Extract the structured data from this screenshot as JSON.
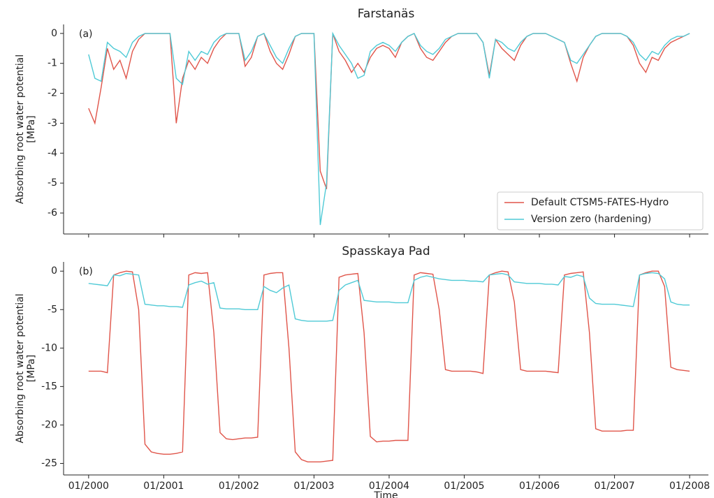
{
  "chart_data": [
    {
      "type": "line",
      "title": "Farstanäs",
      "annotation": "(a)",
      "ylabel": [
        "Absorbing root water potential",
        "[MPa]"
      ],
      "x": [
        "01/2000",
        "02/2000",
        "03/2000",
        "04/2000",
        "05/2000",
        "06/2000",
        "07/2000",
        "08/2000",
        "09/2000",
        "10/2000",
        "11/2000",
        "12/2000",
        "01/2001",
        "02/2001",
        "03/2001",
        "04/2001",
        "05/2001",
        "06/2001",
        "07/2001",
        "08/2001",
        "09/2001",
        "10/2001",
        "11/2001",
        "12/2001",
        "01/2002",
        "02/2002",
        "03/2002",
        "04/2002",
        "05/2002",
        "06/2002",
        "07/2002",
        "08/2002",
        "09/2002",
        "10/2002",
        "11/2002",
        "12/2002",
        "01/2003",
        "02/2003",
        "03/2003",
        "04/2003",
        "05/2003",
        "06/2003",
        "07/2003",
        "08/2003",
        "09/2003",
        "10/2003",
        "11/2003",
        "12/2003",
        "01/2004",
        "02/2004",
        "03/2004",
        "04/2004",
        "05/2004",
        "06/2004",
        "07/2004",
        "08/2004",
        "09/2004",
        "10/2004",
        "11/2004",
        "12/2004",
        "01/2005",
        "02/2005",
        "03/2005",
        "04/2005",
        "05/2005",
        "06/2005",
        "07/2005",
        "08/2005",
        "09/2005",
        "10/2005",
        "11/2005",
        "12/2005",
        "01/2006",
        "02/2006",
        "03/2006",
        "04/2006",
        "05/2006",
        "06/2006",
        "07/2006",
        "08/2006",
        "09/2006",
        "10/2006",
        "11/2006",
        "12/2006",
        "01/2007",
        "02/2007",
        "03/2007",
        "04/2007",
        "05/2007",
        "06/2007",
        "07/2007",
        "08/2007",
        "09/2007",
        "10/2007",
        "11/2007",
        "12/2007",
        "01/2008"
      ],
      "series": [
        {
          "name": "Default CTSM5-FATES-Hydro",
          "color": "#e0554a",
          "values": [
            -2.5,
            -3.0,
            -1.8,
            -0.5,
            -1.2,
            -0.9,
            -1.5,
            -0.6,
            -0.2,
            0,
            0,
            0,
            0,
            0,
            -3.0,
            -1.5,
            -0.9,
            -1.2,
            -0.8,
            -1.0,
            -0.5,
            -0.2,
            0,
            0,
            0,
            -1.1,
            -0.8,
            -0.1,
            0,
            -0.6,
            -1.0,
            -1.2,
            -0.7,
            -0.1,
            0,
            0,
            0,
            -4.6,
            -5.2,
            0,
            -0.6,
            -0.9,
            -1.3,
            -1.0,
            -1.3,
            -0.8,
            -0.5,
            -0.4,
            -0.5,
            -0.8,
            -0.3,
            -0.1,
            0,
            -0.5,
            -0.8,
            -0.9,
            -0.6,
            -0.3,
            -0.1,
            0,
            0,
            0,
            0,
            -0.3,
            -1.4,
            -0.2,
            -0.5,
            -0.7,
            -0.9,
            -0.4,
            -0.1,
            0,
            0,
            0,
            -0.1,
            -0.2,
            -0.3,
            -1.0,
            -1.6,
            -0.8,
            -0.4,
            -0.1,
            0,
            0,
            0,
            0,
            -0.1,
            -0.4,
            -1.0,
            -1.3,
            -0.8,
            -0.9,
            -0.5,
            -0.3,
            -0.2,
            -0.1,
            0
          ]
        },
        {
          "name": "Version zero (hardening)",
          "color": "#4fcad6",
          "values": [
            -0.7,
            -1.5,
            -1.6,
            -0.3,
            -0.5,
            -0.6,
            -0.8,
            -0.3,
            -0.1,
            0,
            0,
            0,
            0,
            0,
            -1.5,
            -1.7,
            -0.6,
            -0.9,
            -0.6,
            -0.7,
            -0.3,
            -0.1,
            0,
            0,
            0,
            -0.9,
            -0.6,
            -0.1,
            0,
            -0.4,
            -0.8,
            -1.0,
            -0.5,
            -0.1,
            0,
            0,
            0,
            -6.4,
            -5.0,
            0,
            -0.4,
            -0.7,
            -1.0,
            -1.5,
            -1.4,
            -0.6,
            -0.4,
            -0.3,
            -0.4,
            -0.6,
            -0.3,
            -0.1,
            0,
            -0.4,
            -0.6,
            -0.7,
            -0.5,
            -0.2,
            -0.1,
            0,
            0,
            0,
            0,
            -0.3,
            -1.5,
            -0.2,
            -0.3,
            -0.5,
            -0.6,
            -0.3,
            -0.1,
            0,
            0,
            0,
            -0.1,
            -0.2,
            -0.3,
            -0.9,
            -1.0,
            -0.7,
            -0.4,
            -0.1,
            0,
            0,
            0,
            0,
            -0.1,
            -0.3,
            -0.7,
            -0.9,
            -0.6,
            -0.7,
            -0.4,
            -0.2,
            -0.1,
            -0.1,
            0
          ]
        }
      ],
      "xlim": [
        "09/1999",
        "04/2008"
      ],
      "xticks": [
        "01/2000",
        "01/2001",
        "01/2002",
        "01/2003",
        "01/2004",
        "01/2005",
        "01/2006",
        "01/2007",
        "01/2008"
      ],
      "xticklabels": false,
      "ylim": [
        -6.7,
        0.3
      ],
      "yticks": [
        -6,
        -5,
        -4,
        -3,
        -2,
        -1,
        0
      ],
      "legend": "lower right"
    },
    {
      "type": "line",
      "title": "Spasskaya Pad",
      "annotation": "(b)",
      "ylabel": [
        "Absorbing root water potential",
        "[MPa]"
      ],
      "xlabel": "Time",
      "x": [
        "01/2000",
        "02/2000",
        "03/2000",
        "04/2000",
        "05/2000",
        "06/2000",
        "07/2000",
        "08/2000",
        "09/2000",
        "10/2000",
        "11/2000",
        "12/2000",
        "01/2001",
        "02/2001",
        "03/2001",
        "04/2001",
        "05/2001",
        "06/2001",
        "07/2001",
        "08/2001",
        "09/2001",
        "10/2001",
        "11/2001",
        "12/2001",
        "01/2002",
        "02/2002",
        "03/2002",
        "04/2002",
        "05/2002",
        "06/2002",
        "07/2002",
        "08/2002",
        "09/2002",
        "10/2002",
        "11/2002",
        "12/2002",
        "01/2003",
        "02/2003",
        "03/2003",
        "04/2003",
        "05/2003",
        "06/2003",
        "07/2003",
        "08/2003",
        "09/2003",
        "10/2003",
        "11/2003",
        "12/2003",
        "01/2004",
        "02/2004",
        "03/2004",
        "04/2004",
        "05/2004",
        "06/2004",
        "07/2004",
        "08/2004",
        "09/2004",
        "10/2004",
        "11/2004",
        "12/2004",
        "01/2005",
        "02/2005",
        "03/2005",
        "04/2005",
        "05/2005",
        "06/2005",
        "07/2005",
        "08/2005",
        "09/2005",
        "10/2005",
        "11/2005",
        "12/2005",
        "01/2006",
        "02/2006",
        "03/2006",
        "04/2006",
        "05/2006",
        "06/2006",
        "07/2006",
        "08/2006",
        "09/2006",
        "10/2006",
        "11/2006",
        "12/2006",
        "01/2007",
        "02/2007",
        "03/2007",
        "04/2007",
        "05/2007",
        "06/2007",
        "07/2007",
        "08/2007",
        "09/2007",
        "10/2007",
        "11/2007",
        "12/2007",
        "01/2008"
      ],
      "series": [
        {
          "color": "#e0554a",
          "values": [
            -13,
            -13,
            -13,
            -13.2,
            -0.5,
            -0.2,
            0,
            -0.1,
            -5,
            -22.5,
            -23.5,
            -23.7,
            -23.8,
            -23.8,
            -23.7,
            -23.5,
            -0.5,
            -0.2,
            -0.3,
            -0.2,
            -8,
            -21,
            -21.8,
            -21.9,
            -21.8,
            -21.7,
            -21.7,
            -21.6,
            -0.5,
            -0.3,
            -0.2,
            -0.2,
            -10,
            -23.5,
            -24.5,
            -24.8,
            -24.8,
            -24.8,
            -24.7,
            -24.6,
            -0.8,
            -0.5,
            -0.4,
            -0.3,
            -8,
            -21.5,
            -22.2,
            -22.1,
            -22.1,
            -22,
            -22,
            -22,
            -0.5,
            -0.2,
            -0.3,
            -0.4,
            -5,
            -12.8,
            -13,
            -13,
            -13,
            -13,
            -13.1,
            -13.3,
            -0.5,
            -0.2,
            0,
            -0.1,
            -4,
            -12.8,
            -13,
            -13,
            -13,
            -13,
            -13.1,
            -13.2,
            -0.5,
            -0.3,
            -0.2,
            -0.1,
            -8,
            -20.5,
            -20.8,
            -20.8,
            -20.8,
            -20.8,
            -20.7,
            -20.7,
            -0.5,
            -0.2,
            0,
            0,
            -2,
            -12.5,
            -12.8,
            -12.9,
            -13
          ]
        },
        {
          "color": "#4fcad6",
          "values": [
            -1.6,
            -1.7,
            -1.8,
            -1.9,
            -0.5,
            -0.6,
            -0.3,
            -0.4,
            -0.5,
            -4.3,
            -4.4,
            -4.5,
            -4.5,
            -4.6,
            -4.6,
            -4.7,
            -1.8,
            -1.5,
            -1.3,
            -1.7,
            -1.5,
            -4.8,
            -4.9,
            -4.9,
            -4.9,
            -5,
            -5,
            -5,
            -2,
            -2.5,
            -2.8,
            -2.2,
            -1.8,
            -6.2,
            -6.4,
            -6.5,
            -6.5,
            -6.5,
            -6.5,
            -6.4,
            -2.5,
            -1.8,
            -1.5,
            -1.2,
            -3.8,
            -3.9,
            -4,
            -4,
            -4,
            -4.1,
            -4.1,
            -4.1,
            -1.2,
            -0.8,
            -0.6,
            -0.8,
            -1,
            -1.1,
            -1.2,
            -1.2,
            -1.2,
            -1.3,
            -1.3,
            -1.4,
            -0.5,
            -0.4,
            -0.3,
            -0.5,
            -1.4,
            -1.5,
            -1.6,
            -1.6,
            -1.6,
            -1.7,
            -1.7,
            -1.8,
            -0.7,
            -0.8,
            -0.5,
            -0.7,
            -3.5,
            -4.2,
            -4.3,
            -4.3,
            -4.3,
            -4.4,
            -4.5,
            -4.6,
            -0.5,
            -0.3,
            -0.2,
            -0.3,
            -1,
            -4,
            -4.3,
            -4.4,
            -4.4
          ]
        }
      ],
      "xlim": [
        "09/1999",
        "04/2008"
      ],
      "xticks": [
        "01/2000",
        "01/2001",
        "01/2002",
        "01/2003",
        "01/2004",
        "01/2005",
        "01/2006",
        "01/2007",
        "01/2008"
      ],
      "xticklabels": true,
      "ylim": [
        -26.5,
        1.2
      ],
      "yticks": [
        -25,
        -20,
        -15,
        -10,
        -5,
        0
      ],
      "legend": false
    }
  ]
}
